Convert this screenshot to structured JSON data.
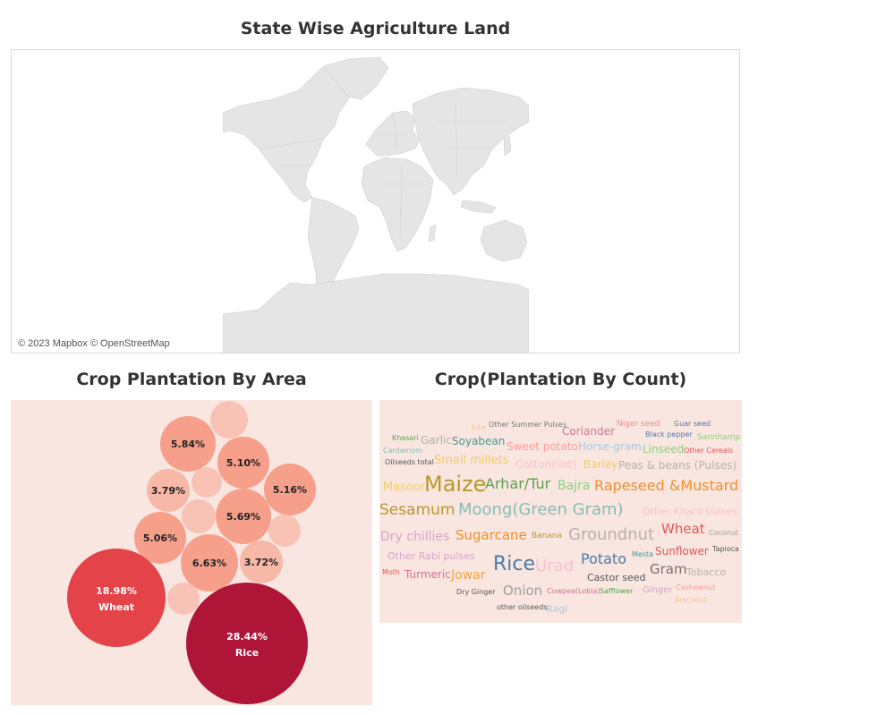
{
  "map": {
    "title": "State Wise Agriculture Land",
    "attribution": "© 2023 Mapbox © OpenStreetMap"
  },
  "area": {
    "title": "Crop Plantation By Area",
    "bubbles": [
      {
        "label": "5.84%",
        "name": "",
        "value": 5.84,
        "color": "#f6a08c"
      },
      {
        "label": "5.10%",
        "name": "",
        "value": 5.1,
        "color": "#f6a08c"
      },
      {
        "label": "3.79%",
        "name": "",
        "value": 3.79,
        "color": "#f8b8a8"
      },
      {
        "label": "5.16%",
        "name": "",
        "value": 5.16,
        "color": "#f6a08c"
      },
      {
        "label": "5.69%",
        "name": "",
        "value": 5.69,
        "color": "#f6a08c"
      },
      {
        "label": "5.06%",
        "name": "",
        "value": 5.06,
        "color": "#f6a08c"
      },
      {
        "label": "6.63%",
        "name": "",
        "value": 6.63,
        "color": "#f6a08c"
      },
      {
        "label": "3.72%",
        "name": "",
        "value": 3.72,
        "color": "#f8b8a8"
      },
      {
        "label": "18.98%",
        "name": "Wheat",
        "value": 18.98,
        "color": "#e4434a"
      },
      {
        "label": "28.44%",
        "name": "Rice",
        "value": 28.44,
        "color": "#ae1537"
      },
      {
        "label": "",
        "name": "",
        "value": 2.5,
        "color": "#f8c2b4"
      },
      {
        "label": "",
        "name": "",
        "value": 1.8,
        "color": "#f8c2b4"
      },
      {
        "label": "",
        "name": "",
        "value": 1.8,
        "color": "#f8c2b4"
      },
      {
        "label": "",
        "name": "",
        "value": 1.8,
        "color": "#f8c2b4"
      },
      {
        "label": "",
        "name": "",
        "value": 1.8,
        "color": "#f8c2b4"
      }
    ]
  },
  "count": {
    "title": "Crop(Plantation By Count)",
    "words": [
      {
        "text": "Jute",
        "size": 8,
        "color": "#f7c38a"
      },
      {
        "text": "Other Summer Pulses",
        "size": 8,
        "color": "#777777"
      },
      {
        "text": "Niger seed",
        "size": 9,
        "color": "#f08a8a"
      },
      {
        "text": "Guar seed",
        "size": 8,
        "color": "#4e79a7"
      },
      {
        "text": "Coriander",
        "size": 12,
        "color": "#d37295"
      },
      {
        "text": "Black pepper",
        "size": 8,
        "color": "#4e79a7"
      },
      {
        "text": "Sannhamp",
        "size": 9,
        "color": "#8cd17d"
      },
      {
        "text": "Khesari",
        "size": 8,
        "color": "#59a14f"
      },
      {
        "text": "Garlic",
        "size": 12,
        "color": "#bab0ac"
      },
      {
        "text": "Soyabean",
        "size": 12,
        "color": "#499894"
      },
      {
        "text": "Sweet potato",
        "size": 12,
        "color": "#ff9d9a"
      },
      {
        "text": "Horse-gram",
        "size": 12,
        "color": "#a0cbe8"
      },
      {
        "text": "Linseed",
        "size": 12,
        "color": "#8cd17d"
      },
      {
        "text": "Other Cereals",
        "size": 8,
        "color": "#e15759"
      },
      {
        "text": "Cardamom",
        "size": 8,
        "color": "#86bcb6"
      },
      {
        "text": "Oilseeds total",
        "size": 8,
        "color": "#555555"
      },
      {
        "text": "Small millets",
        "size": 13,
        "color": "#f1ce63"
      },
      {
        "text": "Cotton(lint)",
        "size": 12,
        "color": "#fabfd2"
      },
      {
        "text": "Barley",
        "size": 12,
        "color": "#f1ce63"
      },
      {
        "text": "Peas & beans (Pulses)",
        "size": 12,
        "color": "#bab0ac"
      },
      {
        "text": "Masoor",
        "size": 13,
        "color": "#f1ce63"
      },
      {
        "text": "Maize",
        "size": 24,
        "color": "#b6992d"
      },
      {
        "text": "Arhar/Tur",
        "size": 16,
        "color": "#59a14f"
      },
      {
        "text": "Bajra",
        "size": 14,
        "color": "#8cd17d"
      },
      {
        "text": "Rapeseed &Mustard",
        "size": 16,
        "color": "#f28e2b"
      },
      {
        "text": "Sesamum",
        "size": 17,
        "color": "#b6992d"
      },
      {
        "text": "Moong(Green Gram)",
        "size": 18,
        "color": "#86bcb6"
      },
      {
        "text": "Other Kharif pulses",
        "size": 11,
        "color": "#fabfd2"
      },
      {
        "text": "Dry chillies",
        "size": 14,
        "color": "#d4a6c8"
      },
      {
        "text": "Sugarcane",
        "size": 15,
        "color": "#f28e2b"
      },
      {
        "text": "Banana",
        "size": 9,
        "color": "#b6992d"
      },
      {
        "text": "Groundnut",
        "size": 18,
        "color": "#bab0ac"
      },
      {
        "text": "Wheat",
        "size": 15,
        "color": "#e15759"
      },
      {
        "text": "Coconut",
        "size": 8,
        "color": "#9d9d9d"
      },
      {
        "text": "Other Rabi pulses",
        "size": 11,
        "color": "#d4a6c8"
      },
      {
        "text": "Tapioca",
        "size": 8,
        "color": "#555555"
      },
      {
        "text": "Sunflower",
        "size": 12,
        "color": "#e15759"
      },
      {
        "text": "Moth",
        "size": 8,
        "color": "#e15759"
      },
      {
        "text": "Turmeric",
        "size": 12,
        "color": "#d37295"
      },
      {
        "text": "Jowar",
        "size": 14,
        "color": "#f1a340"
      },
      {
        "text": "Rice",
        "size": 22,
        "color": "#4e79a7"
      },
      {
        "text": "Urad",
        "size": 18,
        "color": "#fabfd2"
      },
      {
        "text": "Potato",
        "size": 16,
        "color": "#4e79a7"
      },
      {
        "text": "Mesta",
        "size": 8,
        "color": "#499894"
      },
      {
        "text": "Gram",
        "size": 15,
        "color": "#79706e"
      },
      {
        "text": "Tobacco",
        "size": 11,
        "color": "#bab0ac"
      },
      {
        "text": "Castor seed",
        "size": 11,
        "color": "#555555"
      },
      {
        "text": "Dry Ginger",
        "size": 8,
        "color": "#555555"
      },
      {
        "text": "Onion",
        "size": 15,
        "color": "#9d9d9d"
      },
      {
        "text": "Cowpea(Lobia)",
        "size": 8,
        "color": "#d37295"
      },
      {
        "text": "Safflower",
        "size": 8,
        "color": "#59a14f"
      },
      {
        "text": "Ginger",
        "size": 10,
        "color": "#d4a6c8"
      },
      {
        "text": "Cashewnut",
        "size": 8,
        "color": "#ff9d9a"
      },
      {
        "text": "Arecanut",
        "size": 8,
        "color": "#f7c38a"
      },
      {
        "text": "other oilseeds",
        "size": 8,
        "color": "#555555"
      },
      {
        "text": "Ragi",
        "size": 11,
        "color": "#a0cbe8"
      }
    ]
  }
}
